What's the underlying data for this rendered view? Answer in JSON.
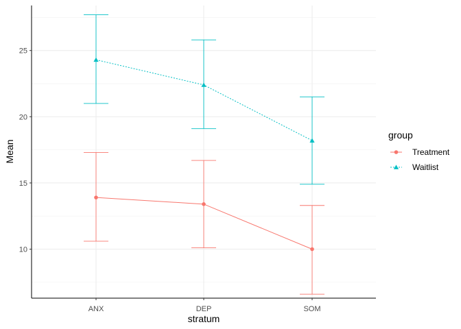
{
  "chart_data": {
    "type": "line",
    "xlabel": "stratum",
    "ylabel": "Mean",
    "categories": [
      "ANX",
      "DEP",
      "SOM"
    ],
    "ylim": [
      6.3,
      28.4
    ],
    "y_ticks": [
      "10",
      "15",
      "20",
      "25"
    ],
    "grid": true,
    "legend": {
      "title": "group",
      "position": "right"
    },
    "series": [
      {
        "name": "Treatment",
        "color": "#F8766D",
        "marker": "circle",
        "line_style": "solid",
        "values": [
          13.9,
          13.4,
          10.0
        ],
        "lower": [
          10.6,
          10.1,
          6.6
        ],
        "upper": [
          17.3,
          16.7,
          13.3
        ]
      },
      {
        "name": "Waitlist",
        "color": "#00BFC4",
        "marker": "triangle",
        "line_style": "dotted",
        "values": [
          24.3,
          22.4,
          18.2
        ],
        "lower": [
          21.0,
          19.1,
          14.9
        ],
        "upper": [
          27.7,
          25.8,
          21.5
        ]
      }
    ]
  }
}
